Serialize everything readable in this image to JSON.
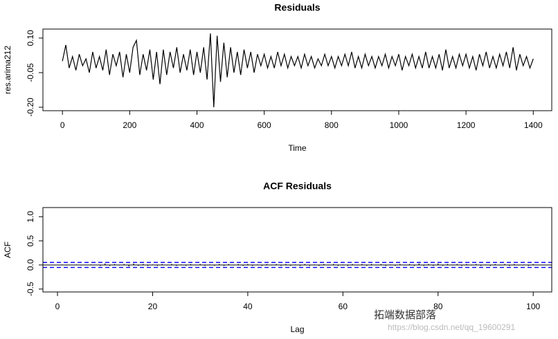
{
  "chart_data": [
    {
      "type": "line",
      "title": "Residuals",
      "x_label": "Time",
      "y_label": "res.arima212",
      "color": "#000000",
      "x": [
        0,
        10,
        20,
        30,
        40,
        50,
        60,
        70,
        80,
        90,
        100,
        110,
        120,
        130,
        140,
        150,
        160,
        170,
        180,
        190,
        200,
        210,
        220,
        230,
        240,
        250,
        260,
        270,
        280,
        290,
        300,
        310,
        320,
        330,
        340,
        350,
        360,
        370,
        380,
        390,
        400,
        410,
        420,
        430,
        440,
        450,
        460,
        470,
        480,
        490,
        500,
        510,
        520,
        530,
        540,
        550,
        560,
        570,
        580,
        590,
        600,
        610,
        620,
        630,
        640,
        650,
        660,
        670,
        680,
        690,
        700,
        710,
        720,
        730,
        740,
        750,
        760,
        770,
        780,
        790,
        800,
        810,
        820,
        830,
        840,
        850,
        860,
        870,
        880,
        890,
        900,
        910,
        920,
        930,
        940,
        950,
        960,
        970,
        980,
        990,
        1000,
        1010,
        1020,
        1030,
        1040,
        1050,
        1060,
        1070,
        1080,
        1090,
        1100,
        1110,
        1120,
        1130,
        1140,
        1150,
        1160,
        1170,
        1180,
        1190,
        1200,
        1210,
        1220,
        1230,
        1240,
        1250,
        1260,
        1270,
        1280,
        1290,
        1300,
        1310,
        1320,
        1330,
        1340,
        1350,
        1360,
        1370,
        1380,
        1390,
        1400
      ],
      "series": [
        {
          "values": [
            0.0,
            0.07,
            -0.03,
            0.02,
            -0.04,
            0.03,
            -0.02,
            0.01,
            -0.05,
            0.04,
            -0.03,
            0.02,
            -0.04,
            0.05,
            -0.06,
            0.03,
            -0.02,
            0.04,
            -0.07,
            0.03,
            -0.05,
            0.06,
            0.09,
            -0.06,
            0.03,
            -0.04,
            0.05,
            -0.08,
            0.04,
            -0.1,
            0.05,
            -0.06,
            0.04,
            -0.03,
            0.06,
            -0.05,
            0.03,
            -0.04,
            0.05,
            -0.06,
            0.04,
            -0.05,
            0.06,
            -0.08,
            0.12,
            -0.2,
            0.11,
            -0.09,
            0.08,
            -0.07,
            0.06,
            -0.05,
            0.04,
            -0.06,
            0.05,
            -0.03,
            0.04,
            -0.05,
            0.03,
            -0.02,
            0.03,
            -0.03,
            0.02,
            -0.03,
            0.04,
            -0.02,
            0.03,
            -0.03,
            0.02,
            -0.02,
            0.02,
            -0.03,
            0.03,
            -0.02,
            0.02,
            -0.03,
            0.01,
            -0.02,
            0.03,
            -0.02,
            0.02,
            -0.03,
            0.02,
            -0.02,
            0.03,
            -0.02,
            0.04,
            -0.03,
            0.02,
            -0.03,
            0.03,
            -0.02,
            0.02,
            -0.03,
            0.02,
            -0.02,
            0.03,
            -0.03,
            0.02,
            -0.02,
            0.03,
            -0.04,
            0.02,
            -0.02,
            0.03,
            -0.03,
            0.02,
            -0.03,
            0.04,
            -0.03,
            0.02,
            -0.03,
            0.03,
            -0.04,
            0.05,
            -0.03,
            0.02,
            -0.03,
            0.03,
            -0.02,
            0.03,
            -0.03,
            0.02,
            -0.04,
            0.03,
            -0.02,
            0.04,
            -0.03,
            0.02,
            -0.03,
            0.03,
            -0.02,
            0.04,
            -0.03,
            0.06,
            -0.04,
            0.03,
            -0.02,
            0.02,
            -0.03,
            0.01
          ]
        }
      ],
      "xlim": [
        -58,
        1455
      ],
      "xticks": [
        0,
        200,
        400,
        600,
        800,
        1000,
        1200,
        1400
      ],
      "ylim": [
        -0.215,
        0.139
      ],
      "yticks": [
        {
          "value": -0.2,
          "label": "-0.20"
        },
        {
          "value": -0.05,
          "label": "-0.05"
        },
        {
          "value": 0.1,
          "label": "0.10"
        }
      ]
    },
    {
      "type": "bar",
      "title": "ACF Residuals",
      "x_label": "Lag",
      "y_label": "ACF",
      "color": "#000000",
      "x": [
        1,
        2,
        3,
        4,
        5,
        6,
        7,
        8,
        9,
        10,
        11,
        12,
        13,
        14,
        15,
        16,
        17,
        18,
        19,
        20,
        21,
        22,
        23,
        24,
        25,
        26,
        27,
        28,
        29,
        30,
        31,
        32,
        33,
        34,
        35,
        36,
        37,
        38,
        39,
        40,
        41,
        42,
        43,
        44,
        45,
        46,
        47,
        48,
        49,
        50,
        51,
        52,
        53,
        54,
        55,
        56,
        57,
        58,
        59,
        60,
        61,
        62,
        63,
        64,
        65,
        66,
        67,
        68,
        69,
        70,
        71,
        72,
        73,
        74,
        75,
        76,
        77,
        78,
        79,
        80,
        81,
        82,
        83,
        84,
        85,
        86,
        87,
        88,
        89,
        90,
        91,
        92,
        93,
        94,
        95,
        96,
        97,
        98,
        99,
        100
      ],
      "series": [
        {
          "values": [
            0.01,
            -0.01,
            0.0,
            0.01,
            -0.01,
            0.0,
            0.01,
            0.0,
            -0.02,
            0.03,
            -0.02,
            0.02,
            -0.01,
            0.02,
            -0.03,
            0.03,
            -0.02,
            0.02,
            -0.02,
            0.01,
            -0.02,
            0.02,
            -0.01,
            0.02,
            -0.02,
            0.01,
            -0.02,
            0.02,
            -0.01,
            0.02,
            -0.02,
            0.01,
            -0.02,
            0.02,
            -0.02,
            0.02,
            -0.01,
            0.02,
            -0.02,
            0.02,
            -0.02,
            0.01,
            -0.02,
            0.02,
            -0.01,
            0.02,
            -0.02,
            0.02,
            -0.02,
            0.01,
            -0.02,
            0.02,
            -0.02,
            0.01,
            -0.02,
            0.02,
            -0.01,
            0.02,
            -0.02,
            0.01,
            -0.02,
            0.02,
            -0.01,
            0.02,
            -0.02,
            0.02,
            -0.01,
            0.02,
            -0.02,
            0.01,
            -0.02,
            0.02,
            -0.01,
            0.02,
            -0.02,
            0.03,
            -0.02,
            0.02,
            -0.02,
            0.03,
            -0.02,
            0.02,
            -0.01,
            0.02,
            -0.02,
            0.02,
            -0.01,
            0.02,
            -0.02,
            0.01,
            -0.02,
            0.02,
            -0.01,
            0.02,
            -0.02,
            0.02,
            -0.01,
            0.01,
            -0.02,
            0.02
          ]
        }
      ],
      "ci": [
        0.052,
        -0.052
      ],
      "ci_color": "#0000ff",
      "xlim": [
        -3.06,
        103.9
      ],
      "xticks": [
        0,
        20,
        40,
        60,
        80,
        100
      ],
      "ylim": [
        -0.56,
        1.19
      ],
      "yticks": [
        {
          "value": -0.5,
          "label": "-0.5"
        },
        {
          "value": 0,
          "label": "0.0"
        },
        {
          "value": 0.5,
          "label": "0.5"
        },
        {
          "value": 1,
          "label": "1.0"
        }
      ]
    }
  ],
  "watermark": {
    "brand": "拓端数据部落",
    "url": "https://blog.csdn.net/qq_19600291"
  }
}
